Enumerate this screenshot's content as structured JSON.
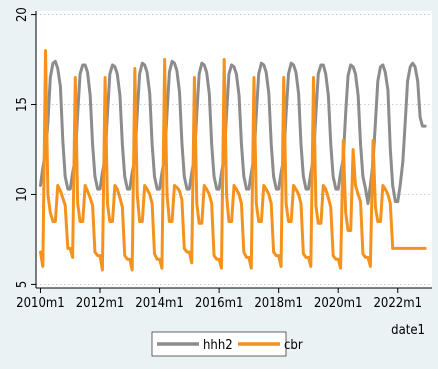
{
  "chart_data": {
    "type": "line",
    "xlabel": "date1",
    "ylabel": "",
    "xlim": [
      2009.85,
      2023.15
    ],
    "ylim": [
      4.8,
      20.2
    ],
    "grid": true,
    "legend_position": "bottom",
    "y_ticks": [
      5,
      10,
      15,
      20
    ],
    "x_ticks": [
      {
        "value": 2010,
        "label": "2010m1"
      },
      {
        "value": 2012,
        "label": "2012m1"
      },
      {
        "value": 2014,
        "label": "2014m1"
      },
      {
        "value": 2016,
        "label": "2016m1"
      },
      {
        "value": 2018,
        "label": "2018m1"
      },
      {
        "value": 2020,
        "label": "2020m1"
      },
      {
        "value": 2022,
        "label": "2022m1"
      }
    ],
    "colors": {
      "hhh2": "#8c8c8c",
      "cbr": "#f5921e",
      "plot_bg": "#ffffff",
      "outer_bg": "#eaf2f3",
      "grid": "#bfbfbf"
    },
    "series": [
      {
        "name": "hhh2",
        "x": [
          2010.0,
          2010.08,
          2010.17,
          2010.25,
          2010.33,
          2010.42,
          2010.5,
          2010.58,
          2010.67,
          2010.75,
          2010.83,
          2010.92,
          2011.0,
          2011.08,
          2011.17,
          2011.25,
          2011.33,
          2011.42,
          2011.5,
          2011.58,
          2011.67,
          2011.75,
          2011.83,
          2011.92,
          2012.0,
          2012.08,
          2012.17,
          2012.25,
          2012.33,
          2012.42,
          2012.5,
          2012.58,
          2012.67,
          2012.75,
          2012.83,
          2012.92,
          2013.0,
          2013.08,
          2013.17,
          2013.25,
          2013.33,
          2013.42,
          2013.5,
          2013.58,
          2013.67,
          2013.75,
          2013.83,
          2013.92,
          2014.0,
          2014.08,
          2014.17,
          2014.25,
          2014.33,
          2014.42,
          2014.5,
          2014.58,
          2014.67,
          2014.75,
          2014.83,
          2014.92,
          2015.0,
          2015.08,
          2015.17,
          2015.25,
          2015.33,
          2015.42,
          2015.5,
          2015.58,
          2015.67,
          2015.75,
          2015.83,
          2015.92,
          2016.0,
          2016.08,
          2016.17,
          2016.25,
          2016.33,
          2016.42,
          2016.5,
          2016.58,
          2016.67,
          2016.75,
          2016.83,
          2016.92,
          2017.0,
          2017.08,
          2017.17,
          2017.25,
          2017.33,
          2017.42,
          2017.5,
          2017.58,
          2017.67,
          2017.75,
          2017.83,
          2017.92,
          2018.0,
          2018.08,
          2018.17,
          2018.25,
          2018.33,
          2018.42,
          2018.5,
          2018.58,
          2018.67,
          2018.75,
          2018.83,
          2018.92,
          2019.0,
          2019.08,
          2019.17,
          2019.25,
          2019.33,
          2019.42,
          2019.5,
          2019.58,
          2019.67,
          2019.75,
          2019.83,
          2019.92,
          2020.0,
          2020.08,
          2020.17,
          2020.25,
          2020.33,
          2020.42,
          2020.5,
          2020.58,
          2020.67,
          2020.75,
          2020.83,
          2020.92,
          2021.0,
          2021.08,
          2021.17,
          2021.25,
          2021.33,
          2021.42,
          2021.5,
          2021.58,
          2021.67,
          2021.75,
          2021.83,
          2021.92,
          2022.0,
          2022.08,
          2022.17,
          2022.25,
          2022.33,
          2022.42,
          2022.5,
          2022.58,
          2022.67,
          2022.75,
          2022.83,
          2022.92
        ],
        "values": [
          10.5,
          11.5,
          12.3,
          14.0,
          16.5,
          17.3,
          17.4,
          17.0,
          16.0,
          13.0,
          11.0,
          10.3,
          10.3,
          11.2,
          12.0,
          14.5,
          16.7,
          17.2,
          17.2,
          16.8,
          15.5,
          12.8,
          11.0,
          10.3,
          10.3,
          11.2,
          12.0,
          14.5,
          16.7,
          17.2,
          17.1,
          16.7,
          15.5,
          12.8,
          11.0,
          10.3,
          10.3,
          11.2,
          12.0,
          14.5,
          16.7,
          17.3,
          17.2,
          16.8,
          15.6,
          12.8,
          11.0,
          10.3,
          10.3,
          11.2,
          12.0,
          14.5,
          16.8,
          17.4,
          17.3,
          16.9,
          15.7,
          12.9,
          11.0,
          10.3,
          10.3,
          11.2,
          12.0,
          14.5,
          16.7,
          17.3,
          17.2,
          16.8,
          15.6,
          12.8,
          11.0,
          10.3,
          10.3,
          11.2,
          12.0,
          14.5,
          16.7,
          17.2,
          17.1,
          16.7,
          15.5,
          12.8,
          11.0,
          10.3,
          10.3,
          11.2,
          12.0,
          14.5,
          16.7,
          17.3,
          17.2,
          16.8,
          15.6,
          12.8,
          11.0,
          10.3,
          10.3,
          11.2,
          12.0,
          14.5,
          16.7,
          17.3,
          17.2,
          16.8,
          15.6,
          12.8,
          11.0,
          10.3,
          10.3,
          11.2,
          12.0,
          14.5,
          16.7,
          17.2,
          17.2,
          16.7,
          15.5,
          12.8,
          11.0,
          10.3,
          10.3,
          11.2,
          12.0,
          14.5,
          16.6,
          17.2,
          17.1,
          16.7,
          15.5,
          12.8,
          11.0,
          10.3,
          9.5,
          10.5,
          11.8,
          14.0,
          16.3,
          17.1,
          17.2,
          16.8,
          15.8,
          12.5,
          10.5,
          9.6,
          9.6,
          10.5,
          11.8,
          14.0,
          16.3,
          17.1,
          17.3,
          17.1,
          16.3,
          14.3,
          13.8,
          13.8
        ]
      },
      {
        "name": "cbr",
        "x": [
          2010.0,
          2010.08,
          2010.17,
          2010.25,
          2010.33,
          2010.42,
          2010.5,
          2010.58,
          2010.67,
          2010.75,
          2010.83,
          2010.92,
          2011.0,
          2011.08,
          2011.17,
          2011.25,
          2011.33,
          2011.42,
          2011.5,
          2011.58,
          2011.67,
          2011.75,
          2011.83,
          2011.92,
          2012.0,
          2012.08,
          2012.17,
          2012.25,
          2012.33,
          2012.42,
          2012.5,
          2012.58,
          2012.67,
          2012.75,
          2012.83,
          2012.92,
          2013.0,
          2013.08,
          2013.17,
          2013.25,
          2013.33,
          2013.42,
          2013.5,
          2013.58,
          2013.67,
          2013.75,
          2013.83,
          2013.92,
          2014.0,
          2014.08,
          2014.17,
          2014.25,
          2014.33,
          2014.42,
          2014.5,
          2014.58,
          2014.67,
          2014.75,
          2014.83,
          2014.92,
          2015.0,
          2015.08,
          2015.17,
          2015.25,
          2015.33,
          2015.42,
          2015.5,
          2015.58,
          2015.67,
          2015.75,
          2015.83,
          2015.92,
          2016.0,
          2016.08,
          2016.17,
          2016.25,
          2016.33,
          2016.42,
          2016.5,
          2016.58,
          2016.67,
          2016.75,
          2016.83,
          2016.92,
          2017.0,
          2017.08,
          2017.17,
          2017.25,
          2017.33,
          2017.42,
          2017.5,
          2017.58,
          2017.67,
          2017.75,
          2017.83,
          2017.92,
          2018.0,
          2018.08,
          2018.17,
          2018.25,
          2018.33,
          2018.42,
          2018.5,
          2018.58,
          2018.67,
          2018.75,
          2018.83,
          2018.92,
          2019.0,
          2019.08,
          2019.17,
          2019.25,
          2019.33,
          2019.42,
          2019.5,
          2019.58,
          2019.67,
          2019.75,
          2019.83,
          2019.92,
          2020.0,
          2020.08,
          2020.17,
          2020.25,
          2020.33,
          2020.42,
          2020.5,
          2020.58,
          2020.67,
          2020.75,
          2020.83,
          2020.92,
          2021.0,
          2021.08,
          2021.17,
          2021.25,
          2021.33,
          2021.42,
          2021.5,
          2021.58,
          2021.67,
          2021.75,
          2021.83,
          2021.92,
          2022.0,
          2022.08,
          2022.17,
          2022.25,
          2022.33,
          2022.42,
          2022.5,
          2022.58,
          2022.67,
          2022.75,
          2022.83,
          2022.92
        ],
        "values": [
          6.8,
          6.0,
          18.0,
          10.0,
          9.0,
          8.5,
          8.5,
          10.5,
          10.2,
          9.8,
          9.4,
          7.0,
          7.0,
          6.5,
          16.5,
          9.5,
          8.5,
          8.5,
          10.5,
          10.2,
          9.8,
          9.4,
          6.8,
          6.6,
          6.6,
          5.8,
          16.5,
          9.5,
          8.5,
          8.5,
          10.5,
          10.3,
          9.8,
          9.3,
          6.6,
          6.4,
          6.4,
          5.8,
          17.0,
          10.0,
          8.5,
          8.5,
          10.5,
          10.3,
          10.0,
          9.5,
          6.7,
          6.4,
          6.4,
          5.9,
          17.5,
          10.0,
          8.5,
          8.5,
          10.5,
          10.4,
          10.2,
          9.7,
          7.0,
          6.8,
          6.8,
          6.2,
          16.5,
          9.5,
          8.4,
          8.4,
          10.5,
          10.3,
          10.0,
          9.5,
          6.6,
          6.4,
          6.4,
          5.9,
          17.5,
          10.0,
          8.5,
          8.5,
          10.5,
          10.3,
          10.0,
          9.5,
          6.8,
          6.5,
          6.5,
          5.9,
          16.5,
          9.5,
          8.5,
          8.5,
          10.5,
          10.3,
          10.0,
          9.5,
          6.8,
          6.6,
          6.6,
          6.0,
          16.5,
          9.5,
          8.5,
          8.5,
          10.5,
          10.3,
          10.0,
          9.5,
          6.7,
          6.5,
          6.5,
          6.0,
          16.5,
          9.4,
          8.4,
          8.4,
          10.5,
          10.3,
          9.8,
          9.3,
          6.6,
          6.4,
          6.4,
          5.9,
          13.0,
          9.0,
          8.0,
          8.0,
          12.5,
          10.5,
          10.0,
          9.6,
          6.7,
          6.5,
          6.5,
          6.0,
          13.0,
          9.3,
          8.5,
          8.5,
          10.5,
          10.3,
          10.0,
          9.5,
          7.0,
          7.0,
          7.0,
          7.0,
          7.0,
          7.0,
          7.0,
          7.0,
          7.0,
          7.0,
          7.0,
          7.0,
          7.0,
          7.0
        ]
      }
    ]
  }
}
